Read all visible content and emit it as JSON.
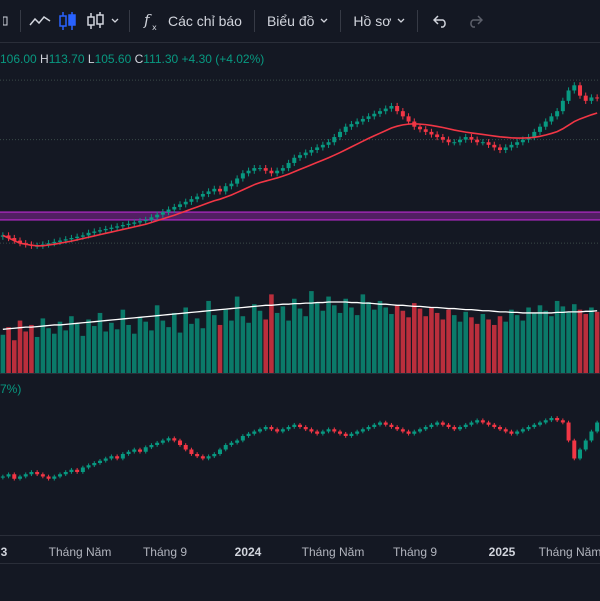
{
  "toolbar": {
    "indicators_label": "Các chỉ báo",
    "chart_label": "Biểu đồ",
    "profile_label": "Hồ sơ"
  },
  "legend": {
    "open_value": "106.00",
    "high_label": "H",
    "high_value": "113.70",
    "low_label": "L",
    "low_value": "105.60",
    "close_label": "C",
    "close_value": "111.30",
    "change": "+4.30 (+4.02%)"
  },
  "lower_legend": {
    "text": "7%)"
  },
  "time_axis": {
    "ticks": [
      {
        "label": "3",
        "bold": true
      },
      {
        "label": "Tháng Năm",
        "bold": false
      },
      {
        "label": "Tháng 9",
        "bold": false
      },
      {
        "label": "2024",
        "bold": true
      },
      {
        "label": "Tháng Năm",
        "bold": false
      },
      {
        "label": "Tháng 9",
        "bold": false
      },
      {
        "label": "2025",
        "bold": true
      },
      {
        "label": "Tháng Năm",
        "bold": false
      }
    ]
  },
  "colors": {
    "up": "#089981",
    "down": "#f23645",
    "ma": "#f23645",
    "volume_ma": "#ffffff",
    "band": "#9c27b0",
    "background": "#141823"
  },
  "chart_data": {
    "type": "candlestick",
    "price_range": [
      40,
      125
    ],
    "highlight_band": [
      64,
      67
    ],
    "horizontal_lines": [
      118,
      95,
      55
    ],
    "closes": [
      58,
      57,
      56,
      55,
      54.5,
      54,
      54,
      54.5,
      55,
      55.5,
      56,
      56.5,
      57,
      57.5,
      58,
      59,
      59.5,
      60,
      60.5,
      61,
      61.5,
      62,
      62.5,
      63,
      63.5,
      64,
      65,
      66,
      67,
      68,
      69,
      70,
      71,
      72,
      73,
      74,
      75,
      76,
      75,
      77,
      78,
      80,
      82,
      83,
      84,
      84,
      83,
      82,
      83,
      84,
      86,
      88,
      89,
      90,
      91,
      92,
      93,
      94,
      96,
      98,
      100,
      101,
      102,
      103,
      104,
      105,
      106,
      107,
      108,
      106,
      104,
      102,
      100,
      99,
      98,
      97,
      96,
      95,
      94,
      94,
      95,
      96,
      95,
      94,
      94,
      93,
      92,
      91,
      92,
      93,
      94,
      95,
      96,
      98,
      100,
      102,
      104,
      106,
      110,
      114,
      116,
      112,
      110,
      111.3,
      111
    ],
    "ma_line": [
      58,
      57,
      56,
      55,
      54.6,
      54.2,
      54,
      54,
      54.3,
      54.6,
      55,
      55.4,
      55.8,
      56.3,
      56.8,
      57.3,
      57.8,
      58.3,
      58.8,
      59.3,
      59.8,
      60.3,
      60.8,
      61.3,
      61.8,
      62.3,
      63,
      63.7,
      64.4,
      65.1,
      65.8,
      66.6,
      67.4,
      68.2,
      69,
      69.8,
      70.6,
      71.4,
      72,
      72.8,
      73.6,
      74.6,
      75.6,
      76.6,
      77.6,
      78.4,
      79,
      79.6,
      80.2,
      80.9,
      81.7,
      82.6,
      83.5,
      84.4,
      85.3,
      86.2,
      87.1,
      88,
      89,
      90,
      91.1,
      92.2,
      93.3,
      94.4,
      95.5,
      96.5,
      97.5,
      98.5,
      99.5,
      100.2,
      100.7,
      101,
      101.1,
      101,
      100.8,
      100.5,
      100.1,
      99.7,
      99.2,
      98.7,
      98.3,
      97.9,
      97.6,
      97.3,
      97,
      96.7,
      96.4,
      96.1,
      95.9,
      95.7,
      95.6,
      95.6,
      95.7,
      95.9,
      96.3,
      96.8,
      97.4,
      98.1,
      99.2,
      100.6,
      102,
      103,
      103.8,
      104.6,
      105.3
    ],
    "volume": [
      35,
      42,
      30,
      48,
      38,
      44,
      33,
      50,
      41,
      36,
      47,
      39,
      52,
      45,
      34,
      49,
      43,
      55,
      38,
      46,
      40,
      58,
      44,
      36,
      51,
      47,
      39,
      62,
      48,
      42,
      55,
      37,
      60,
      45,
      50,
      41,
      66,
      53,
      44,
      58,
      48,
      70,
      52,
      46,
      63,
      57,
      49,
      72,
      55,
      61,
      48,
      68,
      59,
      52,
      75,
      64,
      57,
      70,
      62,
      55,
      68,
      60,
      53,
      72,
      65,
      58,
      66,
      60,
      54,
      62,
      57,
      51,
      64,
      59,
      52,
      60,
      55,
      49,
      58,
      53,
      47,
      56,
      51,
      45,
      54,
      49,
      44,
      52,
      47,
      58,
      53,
      48,
      60,
      55,
      62,
      57,
      52,
      66,
      61,
      56,
      63,
      58,
      54,
      60,
      56
    ],
    "volume_ma": [
      40,
      40.5,
      41,
      41.5,
      42,
      42,
      42.5,
      43,
      43.5,
      44,
      44,
      44.5,
      45,
      45.5,
      46,
      46.5,
      47,
      47.5,
      48,
      48.5,
      49,
      49.5,
      50,
      50.5,
      51,
      51.5,
      52,
      52.5,
      53,
      53.5,
      54,
      54.5,
      55,
      55.5,
      56,
      56.5,
      57,
      57.5,
      58,
      58.5,
      59,
      59.5,
      60,
      60.5,
      61,
      61.5,
      62,
      62,
      62.5,
      63,
      63,
      63.5,
      63.5,
      64,
      64,
      64.5,
      64.5,
      65,
      65,
      65,
      65,
      64.5,
      64.5,
      64,
      64,
      63.5,
      63,
      63,
      62.5,
      62,
      62,
      61.5,
      61,
      61,
      60.5,
      60,
      60,
      59.5,
      59,
      59,
      58.5,
      58,
      58,
      57.5,
      57,
      57,
      56.5,
      56,
      56,
      55.5,
      55.5,
      55,
      55,
      55,
      55,
      55,
      55,
      55.5,
      55.5,
      56,
      56,
      56,
      56.5,
      56.5,
      57
    ],
    "lower_series": [
      10,
      11,
      9,
      10,
      11,
      12,
      11,
      10,
      9,
      10,
      11,
      12,
      13,
      12,
      14,
      15,
      16,
      17,
      18,
      19,
      18,
      20,
      21,
      22,
      21,
      23,
      24,
      25,
      26,
      27,
      26,
      24,
      22,
      20,
      19,
      18,
      19,
      20,
      22,
      24,
      25,
      26,
      28,
      29,
      30,
      31,
      32,
      31,
      30,
      31,
      32,
      33,
      32,
      31,
      30,
      29,
      30,
      31,
      30,
      29,
      28,
      29,
      30,
      31,
      32,
      33,
      34,
      33,
      32,
      31,
      30,
      29,
      30,
      31,
      32,
      33,
      34,
      33,
      32,
      31,
      32,
      33,
      34,
      35,
      34,
      33,
      32,
      31,
      30,
      29,
      30,
      31,
      32,
      33,
      34,
      35,
      36,
      35,
      34,
      26,
      18,
      22,
      26,
      30,
      34
    ]
  }
}
